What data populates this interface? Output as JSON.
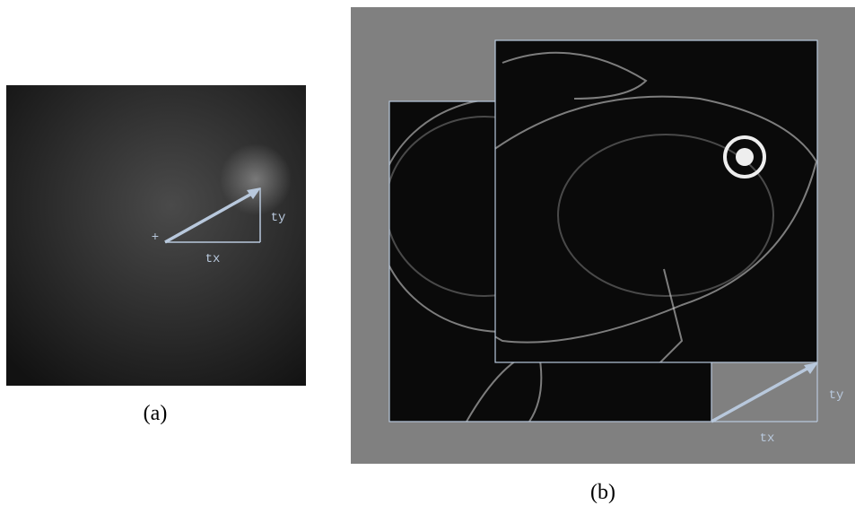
{
  "panel_a": {
    "origin_marker": "+",
    "tx_label": "tx",
    "ty_label": "ty",
    "caption": "(a)"
  },
  "panel_b": {
    "tx_label": "tx",
    "ty_label": "ty",
    "caption": "(b)"
  }
}
